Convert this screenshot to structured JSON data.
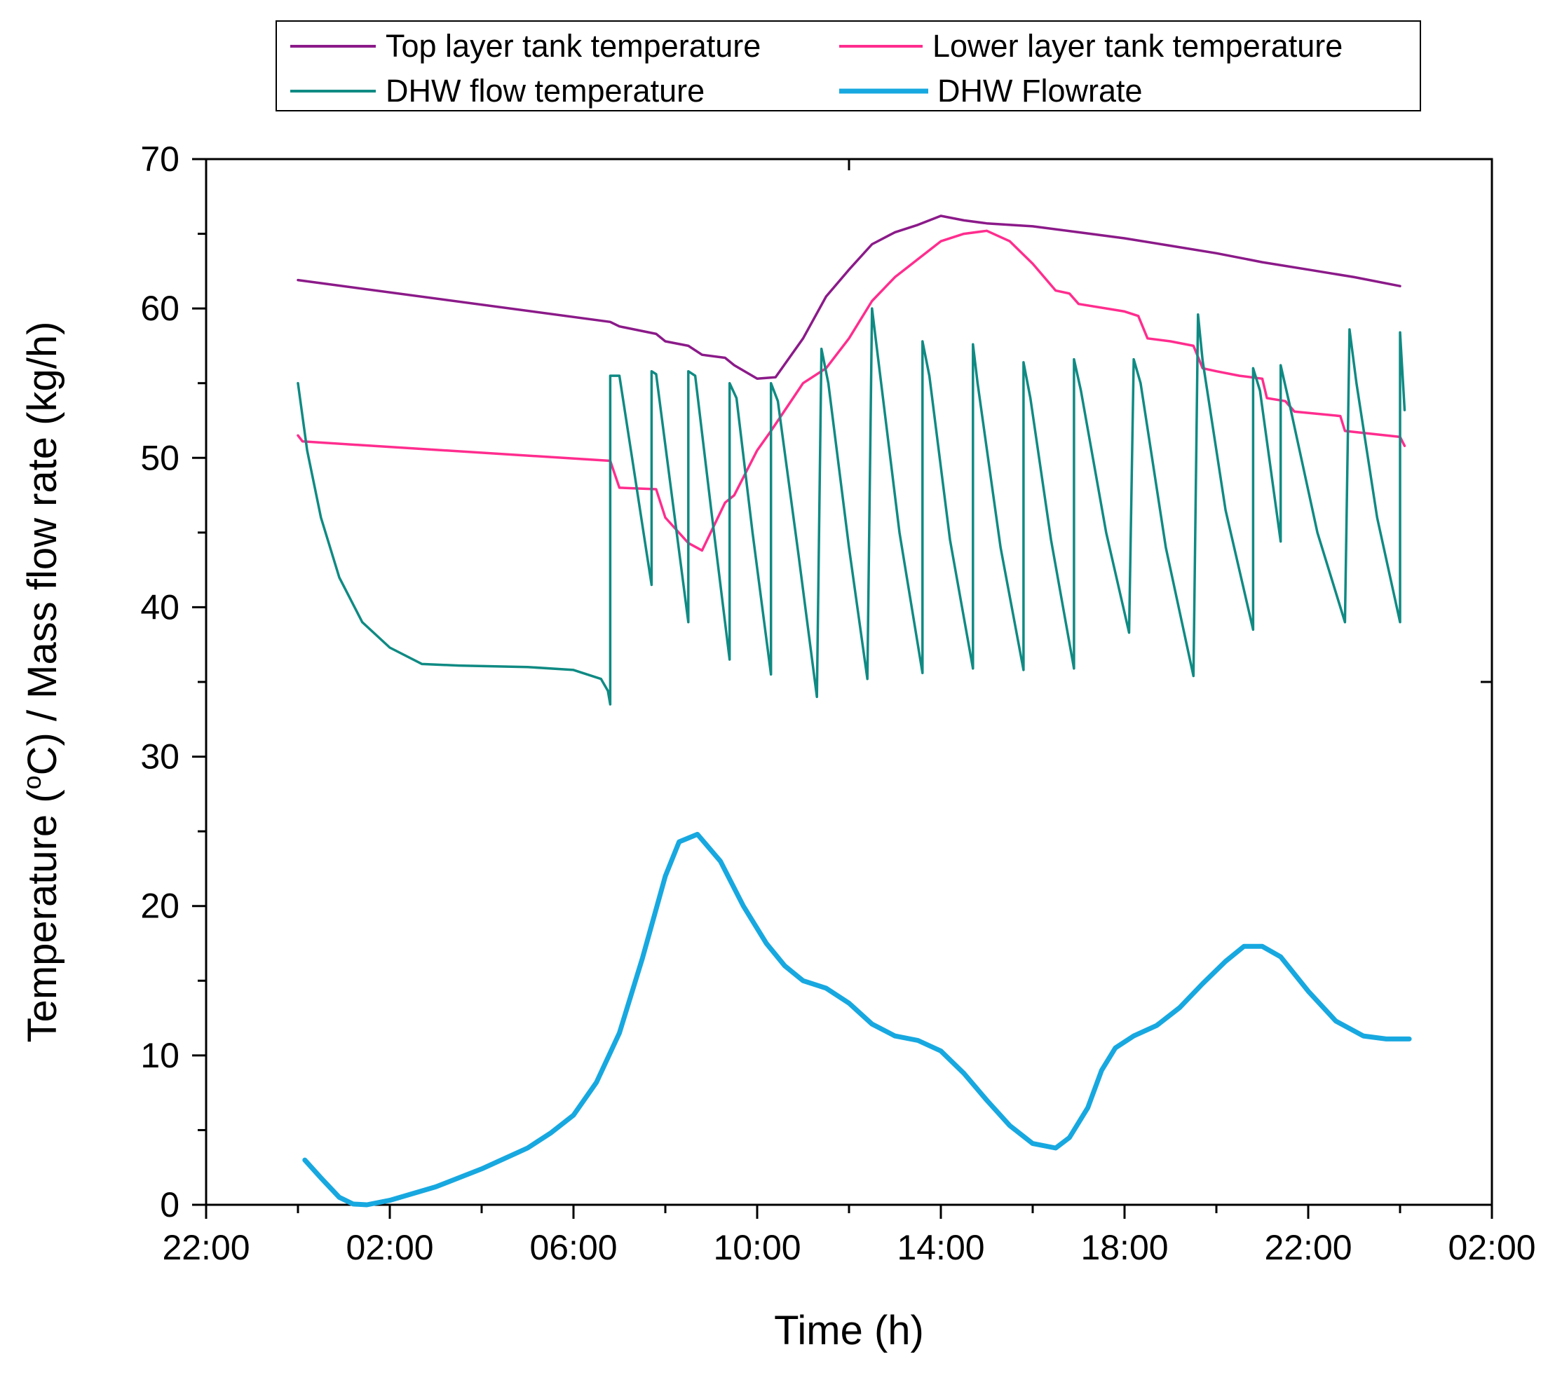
{
  "chart_data": {
    "type": "line",
    "title": "",
    "xlabel": "Time (h)",
    "ylabel_parts": {
      "prefix": "Temperature (",
      "degree": "o",
      "suffix": "C) / Mass flow rate (kg/h)"
    },
    "ylim": [
      0,
      70
    ],
    "xlim_hours": [
      -2,
      26
    ],
    "y_ticks": [
      0,
      10,
      20,
      30,
      40,
      50,
      60,
      70
    ],
    "x_ticks": [
      {
        "h": -2,
        "label": "22:00"
      },
      {
        "h": 2,
        "label": "02:00"
      },
      {
        "h": 6,
        "label": "06:00"
      },
      {
        "h": 10,
        "label": "10:00"
      },
      {
        "h": 14,
        "label": "14:00"
      },
      {
        "h": 18,
        "label": "18:00"
      },
      {
        "h": 22,
        "label": "22:00"
      },
      {
        "h": 26,
        "label": "02:00"
      }
    ],
    "legend_position": "top-center",
    "grid": false,
    "series": [
      {
        "name": "Top layer tank temperature",
        "color": "#8B1A89",
        "points": [
          [
            0,
            61.9
          ],
          [
            6.8,
            59.1
          ],
          [
            7.0,
            58.8
          ],
          [
            7.8,
            58.3
          ],
          [
            8.0,
            57.8
          ],
          [
            8.5,
            57.5
          ],
          [
            8.8,
            56.9
          ],
          [
            9.3,
            56.7
          ],
          [
            9.5,
            56.2
          ],
          [
            10.0,
            55.3
          ],
          [
            10.4,
            55.4
          ],
          [
            11.0,
            58.0
          ],
          [
            11.5,
            60.8
          ],
          [
            12.0,
            62.6
          ],
          [
            12.5,
            64.3
          ],
          [
            13.0,
            65.1
          ],
          [
            13.5,
            65.6
          ],
          [
            14.0,
            66.2
          ],
          [
            14.5,
            65.9
          ],
          [
            15.0,
            65.7
          ],
          [
            16.0,
            65.5
          ],
          [
            17.0,
            65.1
          ],
          [
            18.0,
            64.7
          ],
          [
            19.0,
            64.2
          ],
          [
            20.0,
            63.7
          ],
          [
            21.0,
            63.1
          ],
          [
            22.0,
            62.6
          ],
          [
            23.0,
            62.1
          ],
          [
            24.0,
            61.5
          ]
        ]
      },
      {
        "name": "Lower layer tank temperature",
        "color": "#FF2D8E",
        "points": [
          [
            0,
            51.5
          ],
          [
            0.1,
            51.1
          ],
          [
            6.8,
            49.8
          ],
          [
            7.0,
            48.0
          ],
          [
            7.8,
            47.9
          ],
          [
            8.0,
            46.0
          ],
          [
            8.5,
            44.3
          ],
          [
            8.8,
            43.8
          ],
          [
            9.3,
            47.0
          ],
          [
            9.5,
            47.5
          ],
          [
            10.0,
            50.5
          ],
          [
            10.3,
            51.8
          ],
          [
            11.0,
            55.0
          ],
          [
            11.5,
            56.0
          ],
          [
            12.0,
            58.0
          ],
          [
            12.5,
            60.5
          ],
          [
            13.0,
            62.1
          ],
          [
            13.5,
            63.3
          ],
          [
            14.0,
            64.5
          ],
          [
            14.5,
            65.0
          ],
          [
            15.0,
            65.2
          ],
          [
            15.5,
            64.5
          ],
          [
            16.0,
            63.0
          ],
          [
            16.5,
            61.2
          ],
          [
            16.8,
            61.0
          ],
          [
            17.0,
            60.3
          ],
          [
            18.0,
            59.8
          ],
          [
            18.3,
            59.5
          ],
          [
            18.5,
            58.0
          ],
          [
            19.0,
            57.8
          ],
          [
            19.5,
            57.5
          ],
          [
            19.7,
            56.0
          ],
          [
            20.0,
            55.8
          ],
          [
            20.5,
            55.5
          ],
          [
            21.0,
            55.3
          ],
          [
            21.1,
            54.0
          ],
          [
            21.5,
            53.8
          ],
          [
            21.7,
            53.1
          ],
          [
            22.7,
            52.8
          ],
          [
            22.8,
            51.8
          ],
          [
            24.0,
            51.4
          ],
          [
            24.1,
            50.8
          ]
        ]
      },
      {
        "name": "DHW flow temperature",
        "color": "#0F8A83",
        "points": [
          [
            0,
            55.0
          ],
          [
            0.2,
            50.5
          ],
          [
            0.5,
            46.0
          ],
          [
            0.9,
            42.0
          ],
          [
            1.4,
            39.0
          ],
          [
            2.0,
            37.3
          ],
          [
            2.7,
            36.2
          ],
          [
            3.5,
            36.1
          ],
          [
            5.0,
            36.0
          ],
          [
            6.0,
            35.8
          ],
          [
            6.6,
            35.2
          ],
          [
            6.75,
            34.4
          ],
          [
            6.8,
            33.5
          ],
          [
            6.8,
            55.5
          ],
          [
            7.0,
            55.5
          ],
          [
            7.3,
            49.5
          ],
          [
            7.6,
            43.5
          ],
          [
            7.7,
            41.5
          ],
          [
            7.7,
            55.8
          ],
          [
            7.8,
            55.6
          ],
          [
            8.1,
            48.5
          ],
          [
            8.5,
            39.0
          ],
          [
            8.5,
            55.8
          ],
          [
            8.65,
            55.5
          ],
          [
            9.0,
            46.5
          ],
          [
            9.4,
            36.5
          ],
          [
            9.4,
            55.0
          ],
          [
            9.55,
            54.0
          ],
          [
            9.9,
            45.0
          ],
          [
            10.3,
            35.5
          ],
          [
            10.3,
            55.0
          ],
          [
            10.45,
            53.8
          ],
          [
            10.9,
            43.5
          ],
          [
            11.3,
            34.0
          ],
          [
            11.4,
            57.3
          ],
          [
            11.55,
            55.0
          ],
          [
            12.0,
            44.0
          ],
          [
            12.4,
            35.2
          ],
          [
            12.5,
            60.0
          ],
          [
            12.6,
            57.5
          ],
          [
            13.1,
            45.0
          ],
          [
            13.6,
            35.6
          ],
          [
            13.6,
            57.8
          ],
          [
            13.75,
            55.5
          ],
          [
            14.2,
            44.5
          ],
          [
            14.7,
            35.9
          ],
          [
            14.7,
            57.6
          ],
          [
            14.8,
            55.0
          ],
          [
            15.3,
            44.0
          ],
          [
            15.8,
            35.8
          ],
          [
            15.8,
            56.4
          ],
          [
            15.95,
            54.0
          ],
          [
            16.4,
            44.5
          ],
          [
            16.9,
            35.9
          ],
          [
            16.9,
            56.6
          ],
          [
            17.05,
            54.5
          ],
          [
            17.6,
            45.0
          ],
          [
            18.1,
            38.3
          ],
          [
            18.2,
            56.6
          ],
          [
            18.35,
            55.0
          ],
          [
            18.9,
            44.0
          ],
          [
            19.5,
            35.4
          ],
          [
            19.6,
            59.6
          ],
          [
            19.7,
            56.5
          ],
          [
            20.2,
            46.5
          ],
          [
            20.8,
            38.5
          ],
          [
            20.8,
            56.0
          ],
          [
            20.95,
            54.5
          ],
          [
            21.4,
            44.4
          ],
          [
            21.4,
            56.2
          ],
          [
            21.6,
            53.5
          ],
          [
            22.2,
            45.0
          ],
          [
            22.8,
            39.0
          ],
          [
            22.9,
            58.6
          ],
          [
            23.05,
            55.0
          ],
          [
            23.5,
            46.0
          ],
          [
            24.0,
            39.0
          ],
          [
            24.0,
            58.4
          ],
          [
            24.1,
            53.2
          ]
        ]
      },
      {
        "name": "DHW Flowrate",
        "color": "#17A8E0",
        "thick": true,
        "points": [
          [
            0.15,
            3.0
          ],
          [
            0.5,
            1.8
          ],
          [
            0.9,
            0.5
          ],
          [
            1.2,
            0.05
          ],
          [
            1.5,
            0
          ],
          [
            2.0,
            0.3
          ],
          [
            3.0,
            1.2
          ],
          [
            4.0,
            2.4
          ],
          [
            5.0,
            3.8
          ],
          [
            5.5,
            4.8
          ],
          [
            6.0,
            6.0
          ],
          [
            6.5,
            8.2
          ],
          [
            7.0,
            11.5
          ],
          [
            7.5,
            16.5
          ],
          [
            8.0,
            22.0
          ],
          [
            8.3,
            24.3
          ],
          [
            8.7,
            24.8
          ],
          [
            9.2,
            23.0
          ],
          [
            9.7,
            20.0
          ],
          [
            10.2,
            17.5
          ],
          [
            10.6,
            16.0
          ],
          [
            11.0,
            15.0
          ],
          [
            11.5,
            14.5
          ],
          [
            12.0,
            13.5
          ],
          [
            12.5,
            12.1
          ],
          [
            13.0,
            11.3
          ],
          [
            13.5,
            11.0
          ],
          [
            14.0,
            10.3
          ],
          [
            14.5,
            8.8
          ],
          [
            15.0,
            7.0
          ],
          [
            15.5,
            5.3
          ],
          [
            16.0,
            4.1
          ],
          [
            16.5,
            3.8
          ],
          [
            16.8,
            4.5
          ],
          [
            17.2,
            6.5
          ],
          [
            17.5,
            9.0
          ],
          [
            17.8,
            10.5
          ],
          [
            18.2,
            11.3
          ],
          [
            18.7,
            12.0
          ],
          [
            19.2,
            13.2
          ],
          [
            19.7,
            14.8
          ],
          [
            20.2,
            16.3
          ],
          [
            20.6,
            17.3
          ],
          [
            21.0,
            17.3
          ],
          [
            21.4,
            16.6
          ],
          [
            22.0,
            14.3
          ],
          [
            22.6,
            12.3
          ],
          [
            23.2,
            11.3
          ],
          [
            23.7,
            11.1
          ],
          [
            24.2,
            11.1
          ]
        ]
      }
    ]
  }
}
